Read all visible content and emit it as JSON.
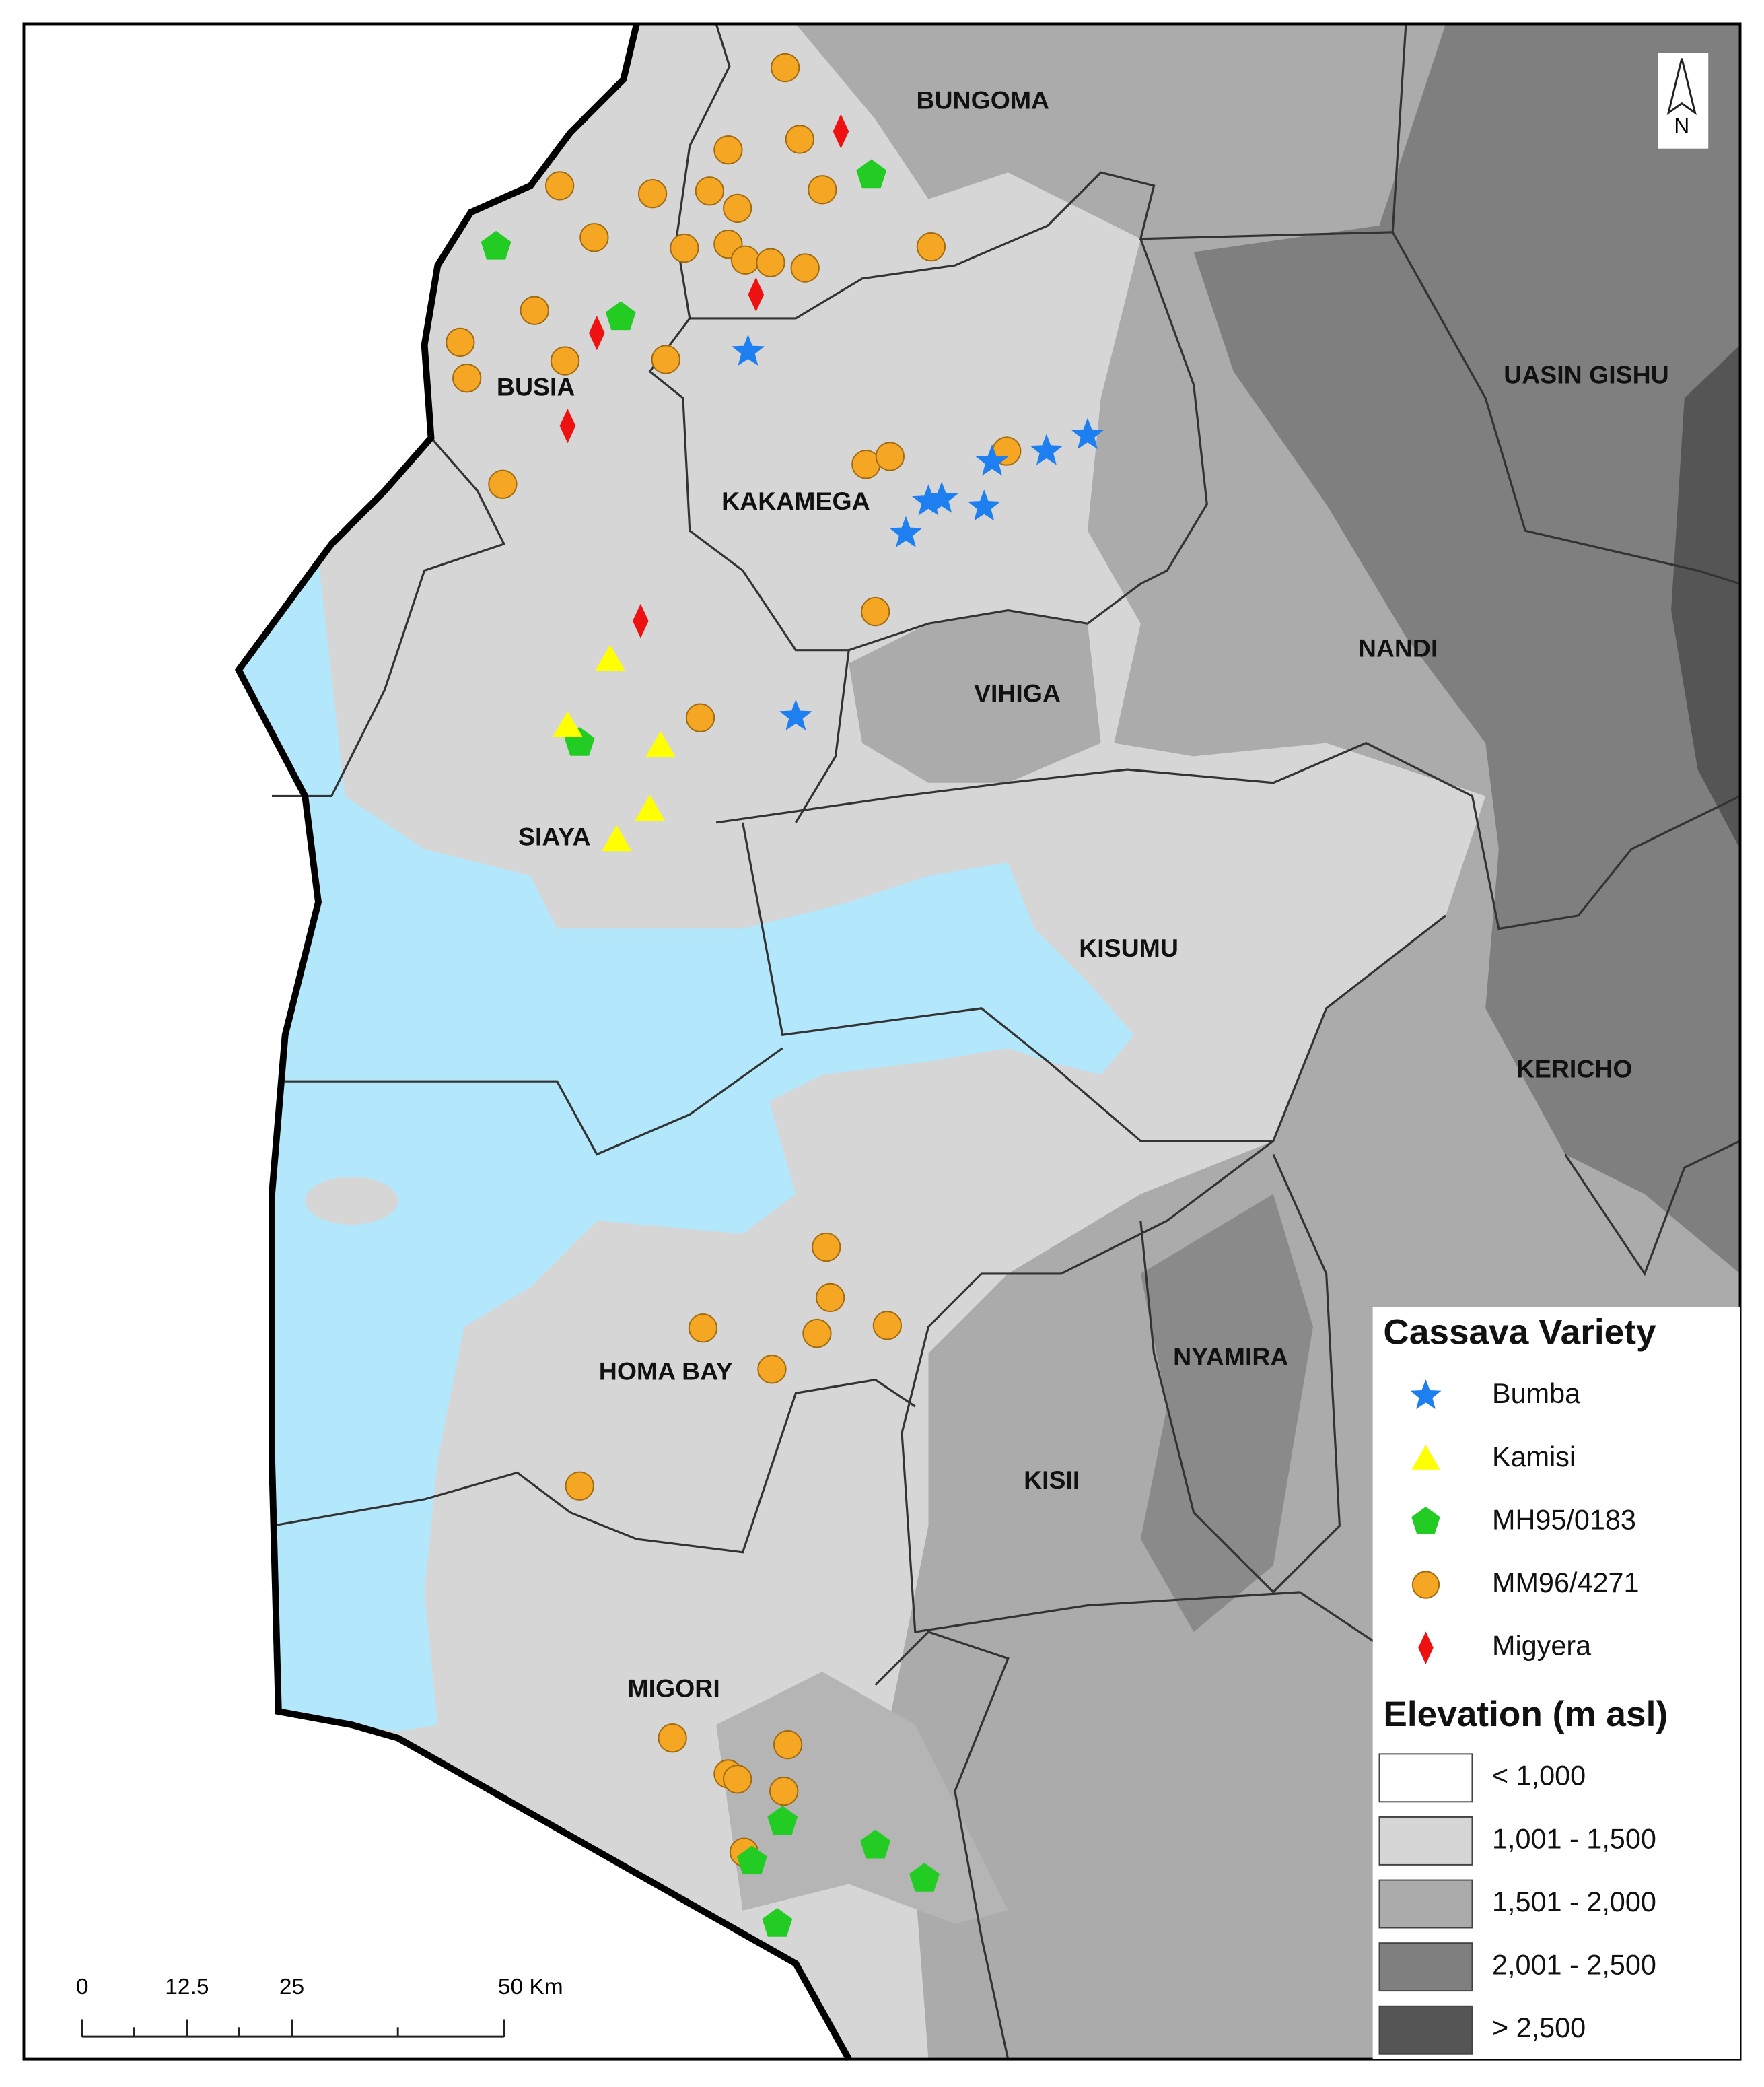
{
  "counties": [
    "BUNGOMA",
    "BUSIA",
    "UASIN GISHU",
    "KAKAMEGA",
    "NANDI",
    "VIHIGA",
    "SIAYA",
    "KISUMU",
    "KERICHO",
    "NYAMIRA",
    "HOMA BAY",
    "KISII",
    "MIGORI"
  ],
  "north_arrow": "N",
  "legend": {
    "title": "Cassava Variety",
    "items": [
      {
        "label": "Bumba",
        "color": "#1e7ff0"
      },
      {
        "label": "Kamisi",
        "color": "#ffff00"
      },
      {
        "label": "MH95/0183",
        "color": "#22cc22"
      },
      {
        "label": "MM96/4271",
        "color": "#f5a623"
      },
      {
        "label": "Migyera",
        "color": "#ee1111"
      }
    ]
  },
  "elevation_legend": {
    "title": "Elevation (m asl)",
    "items": [
      {
        "label": "< 1,000",
        "color": "#ffffff"
      },
      {
        "label": "1,001 - 1,500",
        "color": "#d6d6d6"
      },
      {
        "label": "1,501 - 2,000",
        "color": "#ababab"
      },
      {
        "label": "2,001 - 2,500",
        "color": "#7f7f7f"
      },
      {
        "label": "> 2,500",
        "color": "#555555"
      }
    ]
  },
  "scale_bar": {
    "labels": [
      "0",
      "12.5",
      "25",
      "50 Km"
    ]
  }
}
